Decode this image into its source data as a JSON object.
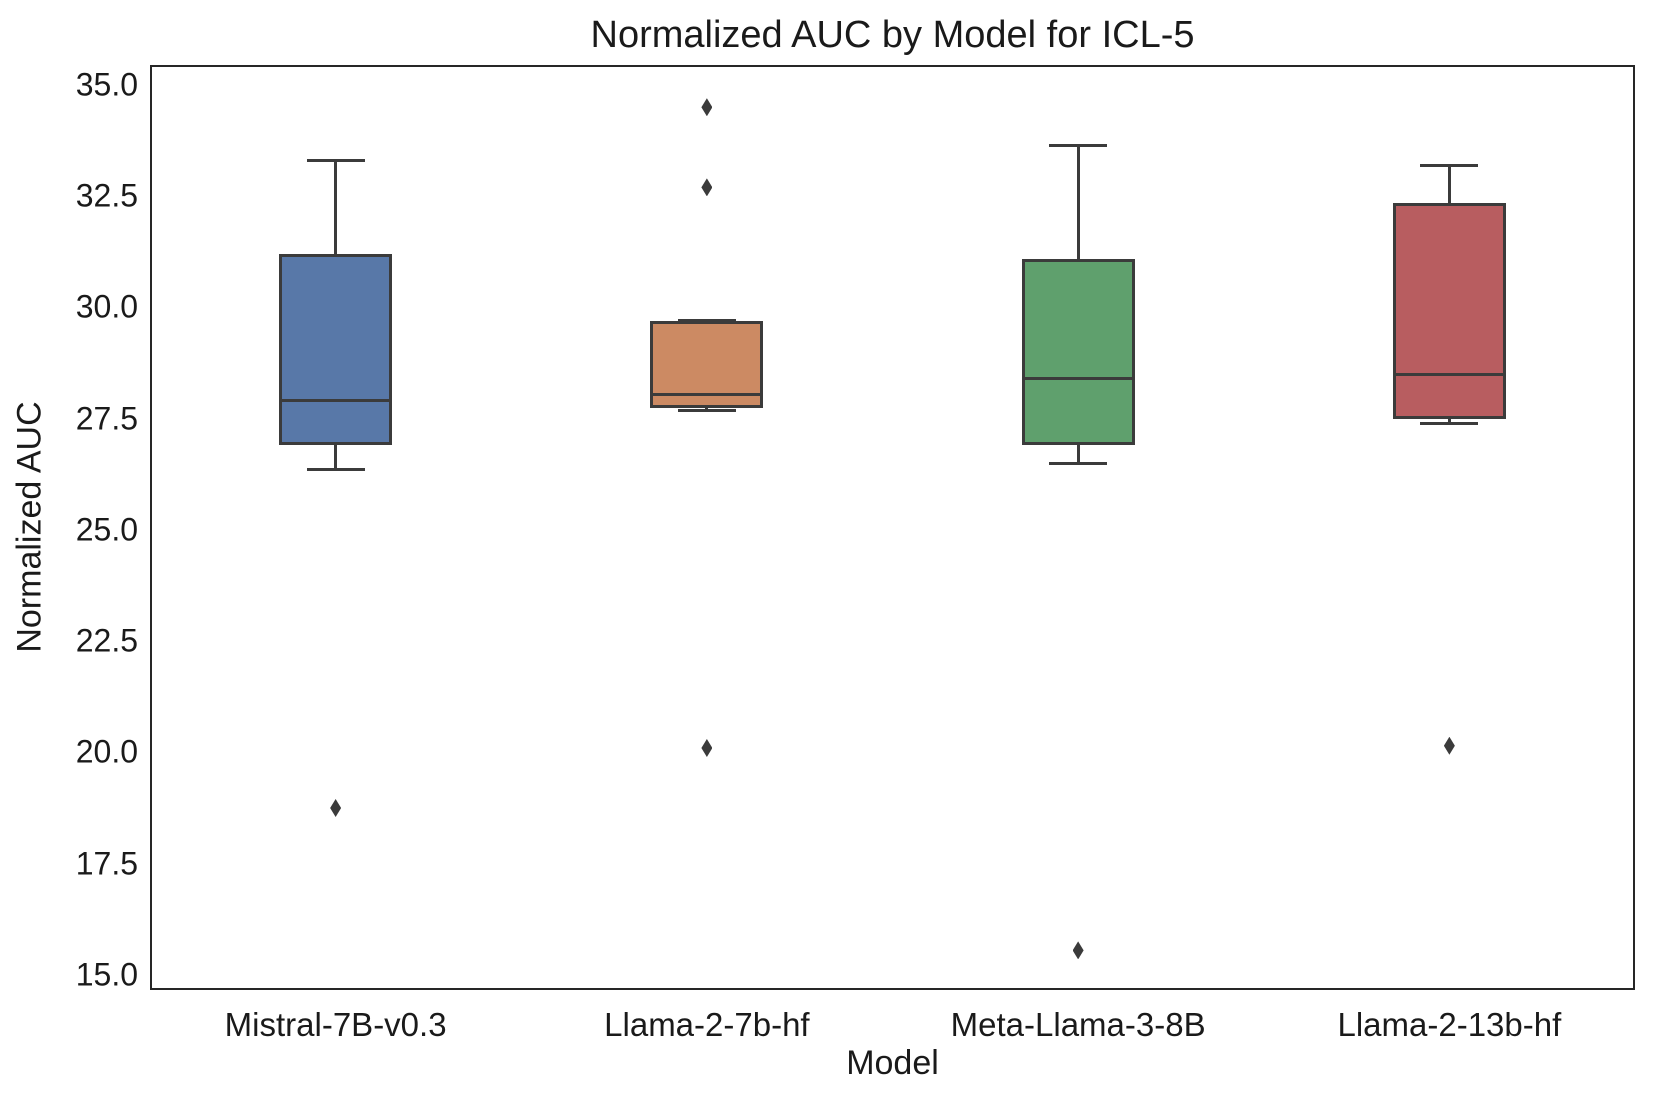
{
  "chart_data": {
    "type": "box",
    "title": "Normalized AUC by Model for ICL-5",
    "xlabel": "Model",
    "ylabel": "Normalized AUC",
    "ylim": [
      14.66,
      35.45
    ],
    "grid": false,
    "legend": false,
    "marker": "thin-diamond",
    "line_color": "#3B3B3B",
    "ytick_values": [
      35.0,
      32.5,
      30.0,
      27.5,
      25.0,
      22.5,
      20.0,
      17.5,
      15.0
    ],
    "ytick_labels": [
      "35.0",
      "32.5",
      "30.0",
      "27.5",
      "25.0",
      "22.5",
      "20.0",
      "17.5",
      "15.0"
    ],
    "categories": [
      "Mistral-7B-v0.3",
      "Llama-2-7b-hf",
      "Meta-Llama-3-8B",
      "Llama-2-13b-hf"
    ],
    "series": [
      {
        "name": "Mistral-7B-v0.3",
        "color": "#5878A8",
        "whisker_low": 26.35,
        "q1": 26.9,
        "median": 27.9,
        "q3": 31.2,
        "whisker_high": 33.3,
        "outliers": [
          18.75
        ]
      },
      {
        "name": "Llama-2-7b-hf",
        "color": "#CC8A63",
        "whisker_low": 27.68,
        "q1": 27.75,
        "median": 28.05,
        "q3": 29.7,
        "whisker_high": 29.7,
        "outliers": [
          34.5,
          32.7,
          20.1
        ]
      },
      {
        "name": "Meta-Llama-3-8B",
        "color": "#5FA06D",
        "whisker_low": 26.5,
        "q1": 26.9,
        "median": 28.4,
        "q3": 31.1,
        "whisker_high": 33.65,
        "outliers": [
          15.55
        ]
      },
      {
        "name": "Llama-2-13b-hf",
        "color": "#B85D60",
        "whisker_low": 27.4,
        "q1": 27.5,
        "median": 28.5,
        "q3": 32.35,
        "whisker_high": 33.2,
        "outliers": [
          20.15
        ]
      }
    ]
  }
}
